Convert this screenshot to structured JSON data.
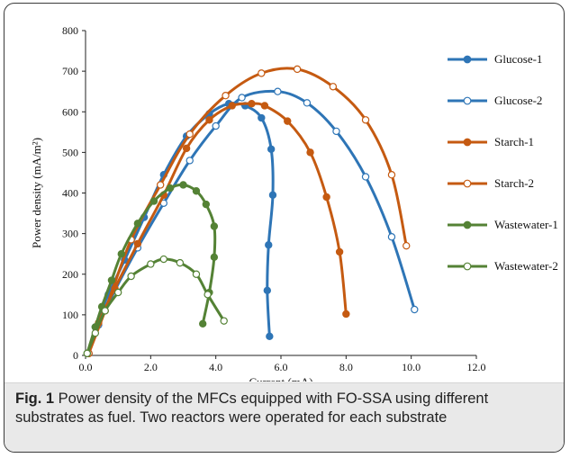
{
  "figure": {
    "caption_label": "Fig. 1",
    "caption_text": " Power density of the MFCs equipped with FO-SSA using different substrates as fuel. Two reactors were operated for each substrate"
  },
  "chart_data": {
    "type": "scatter",
    "xlabel": "Current (mA)",
    "ylabel": "Power density (mA/m²)",
    "xlim": [
      0,
      12
    ],
    "ylim": [
      0,
      800
    ],
    "xticks": [
      "0.0",
      "2.0",
      "4.0",
      "6.0",
      "8.0",
      "10.0",
      "12.0"
    ],
    "yticks": [
      "0",
      "100",
      "200",
      "300",
      "400",
      "500",
      "600",
      "700",
      "800"
    ],
    "grid": false,
    "legend_position": "right",
    "series": [
      {
        "name": "Glucose-1",
        "color": "#2e75b6",
        "marker": "filled",
        "x": [
          0.1,
          0.3,
          0.7,
          1.2,
          1.8,
          2.4,
          3.1,
          3.8,
          4.4,
          4.9,
          5.4,
          5.7,
          5.75,
          5.62,
          5.58,
          5.65
        ],
        "y": [
          5,
          70,
          150,
          235,
          340,
          445,
          540,
          595,
          620,
          615,
          585,
          508,
          395,
          272,
          160,
          47
        ]
      },
      {
        "name": "Glucose-2",
        "color": "#2e75b6",
        "marker": "hollow",
        "x": [
          0.1,
          0.4,
          0.9,
          1.6,
          2.4,
          3.2,
          4.0,
          4.8,
          5.9,
          6.8,
          7.7,
          8.6,
          9.4,
          10.1
        ],
        "y": [
          5,
          75,
          160,
          265,
          375,
          480,
          565,
          635,
          650,
          622,
          552,
          440,
          292,
          113
        ]
      },
      {
        "name": "Starch-1",
        "color": "#c55a11",
        "marker": "filled",
        "x": [
          0.1,
          0.4,
          0.9,
          1.6,
          2.4,
          3.1,
          3.8,
          4.5,
          5.1,
          5.5,
          6.2,
          6.9,
          7.4,
          7.8,
          8.0
        ],
        "y": [
          5,
          80,
          165,
          275,
          395,
          510,
          580,
          615,
          620,
          615,
          577,
          500,
          390,
          255,
          102
        ]
      },
      {
        "name": "Starch-2",
        "color": "#c55a11",
        "marker": "hollow",
        "x": [
          0.1,
          0.6,
          1.4,
          2.3,
          3.2,
          4.3,
          5.4,
          6.5,
          7.6,
          8.6,
          9.4,
          9.85
        ],
        "y": [
          5,
          110,
          285,
          420,
          545,
          640,
          695,
          705,
          662,
          580,
          445,
          270
        ]
      },
      {
        "name": "Wastewater-1",
        "color": "#548235",
        "marker": "filled",
        "x": [
          0.05,
          0.3,
          0.5,
          0.8,
          1.1,
          1.6,
          2.1,
          2.6,
          3.0,
          3.4,
          3.7,
          3.95,
          3.95,
          3.8,
          3.6
        ],
        "y": [
          5,
          70,
          120,
          185,
          250,
          325,
          380,
          412,
          420,
          405,
          372,
          318,
          242,
          155,
          78
        ]
      },
      {
        "name": "Wastewater-2",
        "color": "#548235",
        "marker": "hollow",
        "x": [
          0.05,
          0.3,
          0.6,
          1.0,
          1.4,
          2.0,
          2.4,
          2.9,
          3.4,
          3.75,
          4.25
        ],
        "y": [
          5,
          55,
          110,
          155,
          195,
          225,
          237,
          228,
          200,
          150,
          85
        ]
      }
    ]
  }
}
